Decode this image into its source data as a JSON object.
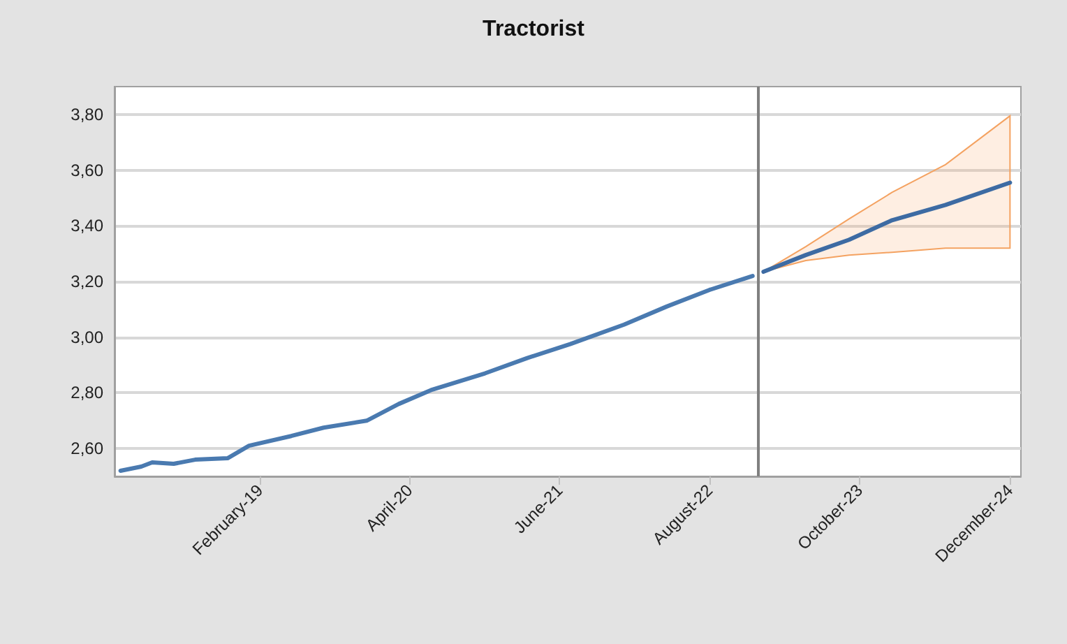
{
  "chart_data": {
    "type": "line",
    "title": "Tractorist",
    "series": [
      {
        "color": "#4a7ab0",
        "x": [
          "2018-01",
          "2018-03",
          "2018-04",
          "2018-06",
          "2018-08",
          "2018-11",
          "2019-01",
          "2019-05",
          "2019-08",
          "2019-12",
          "2020-03",
          "2020-06",
          "2020-11",
          "2021-03",
          "2021-07",
          "2021-12",
          "2022-04",
          "2022-08",
          "2022-12"
        ],
        "values": [
          2.52,
          2.535,
          2.55,
          2.545,
          2.56,
          2.565,
          2.61,
          2.645,
          2.675,
          2.7,
          2.76,
          2.81,
          2.87,
          2.925,
          2.975,
          3.045,
          3.11,
          3.17,
          3.22
        ]
      },
      {
        "color": "#3d6ba3",
        "x": [
          "2023-01",
          "2023-05",
          "2023-09",
          "2024-01",
          "2024-06",
          "2024-12"
        ],
        "values": [
          3.235,
          3.295,
          3.35,
          3.42,
          3.475,
          3.555
        ],
        "lower": [
          3.235,
          3.275,
          3.295,
          3.305,
          3.32,
          3.32
        ],
        "upper": [
          3.235,
          3.325,
          3.425,
          3.52,
          3.62,
          3.795
        ]
      }
    ],
    "xlim": [
      "2017-12-15",
      "2025-01-01"
    ],
    "xticks": [
      {
        "value": "2019-02",
        "label": "February-19"
      },
      {
        "value": "2020-04",
        "label": "April-20"
      },
      {
        "value": "2021-06",
        "label": "June-21"
      },
      {
        "value": "2022-08",
        "label": "August-22"
      },
      {
        "value": "2023-10",
        "label": "October-23"
      },
      {
        "value": "2024-12",
        "label": "December-24"
      }
    ],
    "ylim": [
      2.5,
      3.9
    ],
    "yticks": [
      {
        "value": 2.6,
        "label": "2,60"
      },
      {
        "value": 2.8,
        "label": "2,80"
      },
      {
        "value": 3.0,
        "label": "3,00"
      },
      {
        "value": 3.2,
        "label": "3,20"
      },
      {
        "value": 3.4,
        "label": "3,40"
      },
      {
        "value": 3.6,
        "label": "3,60"
      },
      {
        "value": 3.8,
        "label": "3,80"
      }
    ],
    "grid": "y",
    "ref_lines": [
      {
        "axis": "x",
        "value": "2022-12-15",
        "color": "#808080"
      }
    ],
    "marker": "none",
    "line_style": "solid"
  }
}
